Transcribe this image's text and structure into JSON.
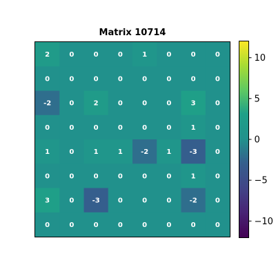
{
  "chart_data": {
    "type": "heatmap",
    "title": "Matrix 10714",
    "colormap": "viridis",
    "vmin": -12,
    "vmax": 12,
    "colorbar_ticks": [
      {
        "value": 10,
        "label": "10"
      },
      {
        "value": 5,
        "label": "5"
      },
      {
        "value": 0,
        "label": "0"
      },
      {
        "value": -5,
        "label": "−5"
      },
      {
        "value": -10,
        "label": "−10"
      }
    ],
    "matrix": [
      [
        2,
        0,
        0,
        0,
        1,
        0,
        0,
        0
      ],
      [
        0,
        0,
        0,
        0,
        0,
        0,
        0,
        0
      ],
      [
        -2,
        0,
        2,
        0,
        0,
        0,
        3,
        0
      ],
      [
        0,
        0,
        0,
        0,
        0,
        0,
        1,
        0
      ],
      [
        1,
        0,
        1,
        1,
        -2,
        1,
        -3,
        0
      ],
      [
        0,
        0,
        0,
        0,
        0,
        0,
        1,
        0
      ],
      [
        3,
        0,
        -3,
        0,
        0,
        0,
        -2,
        0
      ],
      [
        0,
        0,
        0,
        0,
        0,
        0,
        0,
        0
      ]
    ]
  }
}
